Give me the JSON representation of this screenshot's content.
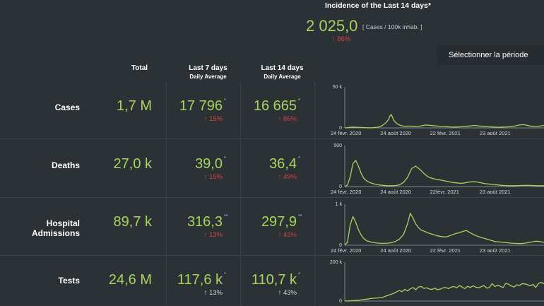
{
  "incidence": {
    "title": "Incidence of the Last 14 days*",
    "value": "2 025,0",
    "unit": "[ Cases / 100k inhab. ]",
    "change": "↑ 86%"
  },
  "period_button": "Sélectionner la période",
  "columns": {
    "total": "Total",
    "last7": "Last 7 days",
    "last7_sub": "Daily Average",
    "last14": "Last 14 days",
    "last14_sub": "Daily Average"
  },
  "rows": [
    {
      "label": "Cases",
      "total": "1,7 M",
      "d7": "17 796",
      "d7_mark": "*",
      "d7_change": "↑ 15%",
      "d14": "16 665",
      "d14_mark": "*",
      "d14_change": "↑ 86%"
    },
    {
      "label": "Deaths",
      "total": "27,0 k",
      "d7": "39,0",
      "d7_mark": "*",
      "d7_change": "↑ 15%",
      "d14": "36,4",
      "d14_mark": "*",
      "d14_change": "↑ 49%"
    },
    {
      "label": "Hospital Admissions",
      "total": "89,7 k",
      "d7": "316,3",
      "d7_mark": "**",
      "d7_change": "↑ 13%",
      "d14": "297,9",
      "d14_mark": "**",
      "d14_change": "↑ 43%"
    },
    {
      "label": "Tests",
      "total": "24,6 M",
      "d7": "117,6 k",
      "d7_mark": "*",
      "d7_change": "↑ 13%",
      "d14": "110,7 k",
      "d14_mark": "*",
      "d14_change": "↑ 43%"
    }
  ],
  "colors": {
    "accent": "#a8d45e",
    "increase": "#d04444",
    "background": "#2b3134"
  },
  "chart_data": [
    {
      "type": "line",
      "series_metric": "Cases",
      "ylim": [
        0,
        50000
      ],
      "y_ticks": [
        "50 k",
        "0"
      ],
      "x_ticks": [
        "24 févr. 2020",
        "24 août 2020",
        "22 févr. 2021",
        "23 août 2021"
      ],
      "x": [
        0,
        15,
        30,
        45,
        60,
        75,
        90,
        105,
        120,
        135,
        150,
        160,
        165,
        170,
        175,
        180,
        190,
        200,
        210,
        220,
        235,
        250,
        265,
        280,
        295,
        310,
        325,
        340,
        355,
        370,
        385,
        400,
        415,
        430,
        445,
        460,
        475,
        490,
        505,
        520,
        535,
        550,
        565,
        580,
        595,
        610,
        625,
        640,
        655,
        670,
        685,
        700,
        715,
        730
      ],
      "values": [
        0,
        500,
        1000,
        800,
        500,
        300,
        200,
        300,
        800,
        2500,
        6000,
        10000,
        14000,
        16500,
        13000,
        9000,
        5500,
        3500,
        2500,
        2000,
        2200,
        2000,
        1800,
        2500,
        3500,
        3200,
        2800,
        2200,
        1800,
        1500,
        1200,
        1000,
        1200,
        1500,
        2000,
        2500,
        3000,
        2500,
        2000,
        1500,
        1200,
        1000,
        900,
        1000,
        1200,
        1800,
        2500,
        3500,
        4000,
        3000,
        2000,
        1800,
        2200,
        3000
      ]
    },
    {
      "type": "line",
      "series_metric": "Deaths",
      "ylim": [
        0,
        500
      ],
      "y_ticks": [
        "500",
        "0"
      ],
      "x_ticks": [
        "24 févr. 2020",
        "24 août 2020",
        "22févr. 2021",
        "23 août 2021"
      ],
      "x": [
        0,
        10,
        20,
        30,
        40,
        50,
        60,
        70,
        80,
        95,
        110,
        125,
        140,
        155,
        170,
        185,
        200,
        215,
        230,
        245,
        260,
        275,
        290,
        305,
        320,
        335,
        350,
        365,
        380,
        395,
        410,
        425,
        440,
        455,
        470,
        485,
        500,
        515,
        530,
        545,
        560,
        575,
        590,
        605,
        620,
        635,
        650,
        665,
        680,
        695,
        710,
        730
      ],
      "values": [
        0,
        20,
        120,
        280,
        320,
        250,
        160,
        100,
        70,
        45,
        30,
        20,
        15,
        10,
        10,
        12,
        20,
        50,
        110,
        220,
        250,
        210,
        160,
        120,
        100,
        90,
        80,
        70,
        60,
        50,
        45,
        40,
        45,
        55,
        60,
        55,
        45,
        35,
        30,
        25,
        20,
        15,
        12,
        10,
        10,
        12,
        14,
        15,
        14,
        12,
        10,
        10
      ]
    },
    {
      "type": "line",
      "series_metric": "Hospital Admissions",
      "ylim": [
        0,
        1000
      ],
      "y_ticks": [
        "1 k",
        "0"
      ],
      "x_ticks": [
        "24 févr. 2020",
        "24 août 2020",
        "22 févr. 2021",
        "23 août 2021"
      ],
      "x": [
        0,
        10,
        20,
        30,
        40,
        50,
        60,
        70,
        80,
        95,
        110,
        125,
        140,
        155,
        170,
        185,
        200,
        215,
        230,
        240,
        250,
        260,
        270,
        280,
        295,
        310,
        325,
        340,
        355,
        370,
        385,
        400,
        415,
        430,
        445,
        460,
        475,
        490,
        505,
        520,
        535,
        550,
        565,
        580,
        595,
        610,
        625,
        640,
        655,
        670,
        685,
        700,
        715,
        730
      ],
      "values": [
        0,
        80,
        500,
        700,
        560,
        380,
        250,
        160,
        110,
        80,
        60,
        50,
        45,
        50,
        60,
        90,
        150,
        260,
        520,
        780,
        660,
        520,
        430,
        370,
        330,
        290,
        260,
        230,
        210,
        200,
        230,
        270,
        300,
        330,
        360,
        300,
        250,
        210,
        180,
        150,
        120,
        90,
        80,
        70,
        60,
        50,
        45,
        40,
        45,
        60,
        80,
        100,
        90,
        70
      ]
    },
    {
      "type": "line",
      "series_metric": "Tests",
      "ylim": [
        0,
        200000
      ],
      "y_ticks": [
        "200 k",
        "0"
      ],
      "x_ticks": [],
      "x": [
        0,
        20,
        40,
        60,
        80,
        100,
        120,
        140,
        160,
        180,
        200,
        210,
        220,
        230,
        240,
        250,
        260,
        270,
        280,
        290,
        300,
        310,
        320,
        330,
        340,
        350,
        360,
        370,
        380,
        390,
        400,
        410,
        420,
        430,
        440,
        450,
        460,
        470,
        480,
        490,
        500,
        510,
        520,
        530,
        540,
        550,
        560,
        570,
        580,
        590,
        600,
        610,
        620,
        630,
        640,
        650,
        660,
        670,
        680,
        690,
        700,
        710,
        720,
        730
      ],
      "values": [
        0,
        1000,
        3000,
        6000,
        10000,
        14000,
        16000,
        20000,
        30000,
        40000,
        55000,
        48000,
        60000,
        52000,
        63000,
        70000,
        58000,
        72000,
        75000,
        65000,
        68000,
        62000,
        60000,
        66000,
        58000,
        62000,
        68000,
        70000,
        64000,
        72000,
        75000,
        68000,
        80000,
        72000,
        64000,
        76000,
        70000,
        78000,
        72000,
        68000,
        74000,
        80000,
        66000,
        70000,
        90000,
        74000,
        82000,
        76000,
        70000,
        92000,
        86000,
        78000,
        72000,
        84000,
        80000,
        90000,
        88000,
        84000,
        78000,
        86000,
        70000,
        92000,
        96000,
        88000
      ]
    }
  ]
}
